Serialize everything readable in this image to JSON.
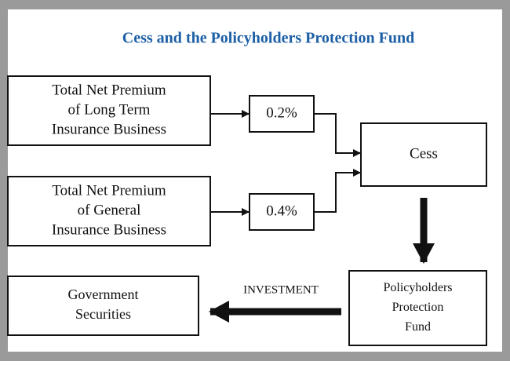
{
  "title": "Cess and the Policyholders Protection Fund",
  "nodes": [
    {
      "label": [
        "Total Net Premium",
        "of Long Term",
        "Insurance Business"
      ]
    },
    {
      "label": [
        "Total Net Premium",
        "of General",
        "Insurance Business"
      ]
    },
    {
      "label": [
        "0.2%"
      ]
    },
    {
      "label": [
        "0.4%"
      ]
    },
    {
      "label": [
        "Cess"
      ]
    },
    {
      "label": [
        "Policyholders",
        "Protection",
        "Fund"
      ]
    },
    {
      "label": [
        "Government",
        "Securities"
      ]
    }
  ],
  "edge_label": "INVESTMENT"
}
